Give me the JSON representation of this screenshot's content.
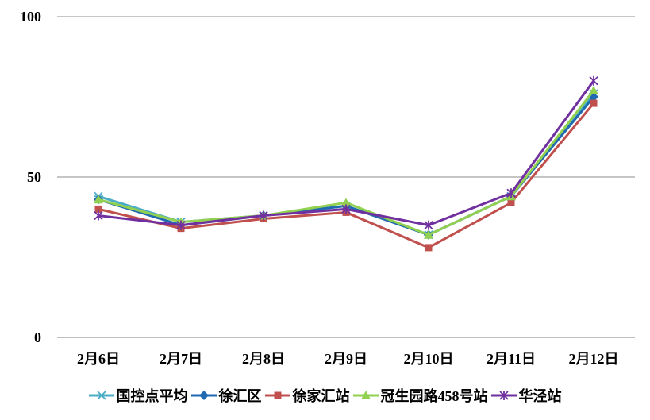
{
  "chart_data": {
    "type": "line",
    "categories": [
      "2月6日",
      "2月7日",
      "2月8日",
      "2月9日",
      "2月10日",
      "2月11日",
      "2月12日"
    ],
    "series": [
      {
        "name": "国控点平均",
        "color": "#4bacc6",
        "marker": "asterisk",
        "values": [
          44,
          36,
          38,
          41,
          32,
          44,
          76
        ]
      },
      {
        "name": "徐汇区",
        "color": "#1f6ab0",
        "marker": "diamond",
        "values": [
          43,
          35,
          38,
          41,
          32,
          44,
          75
        ]
      },
      {
        "name": "徐家汇站",
        "color": "#c0504d",
        "marker": "square",
        "values": [
          40,
          34,
          37,
          39,
          28,
          42,
          73
        ]
      },
      {
        "name": "冠生园路458号站",
        "color": "#92d050",
        "marker": "triangle",
        "values": [
          43,
          36,
          38,
          42,
          32,
          44,
          77
        ]
      },
      {
        "name": "华泾站",
        "color": "#7030a0",
        "marker": "star",
        "values": [
          38,
          35,
          38,
          40,
          35,
          45,
          80
        ]
      }
    ],
    "yticks": [
      0,
      50,
      100
    ],
    "ylim": [
      0,
      100
    ],
    "grid": true,
    "gridline_color": "#8c8c8c",
    "legend": "bottom"
  }
}
